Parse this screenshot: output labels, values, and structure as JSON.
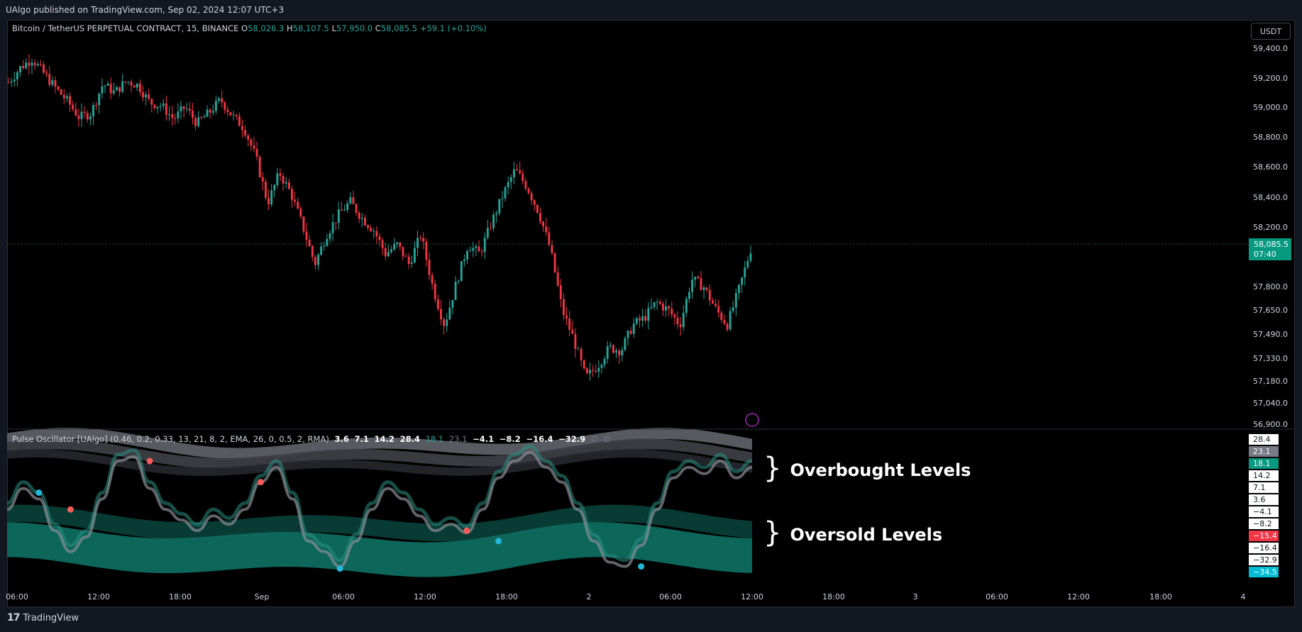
{
  "header": {
    "published_text": "UAlgo published on TradingView.com, Sep 02, 2024 12:07 UTC+3"
  },
  "main_legend": {
    "symbol": "Bitcoin / TetherUS PERPETUAL CONTRACT, 15, BINANCE",
    "o_label": "O",
    "o_value": "58,026.3",
    "h_label": "H",
    "h_value": "58,107.5",
    "l_label": "L",
    "l_value": "57,950.0",
    "c_label": "C",
    "c_value": "58,085.5",
    "change": "+59.1 (+0.10%)"
  },
  "currency_button": "USDT",
  "last_price": {
    "price": "58,085.5",
    "countdown": "07:40"
  },
  "osc_legend": {
    "name": "Pulse Oscillator [UAlgo] (0.46, 0.2, 0.33, 13, 21, 8, 2, EMA, 26, 0, 0.5, 2, RMA)",
    "v1": "3.6",
    "v2": "7.1",
    "v3": "14.2",
    "v4": "28.4",
    "v5": "18.1",
    "v6": "23.1",
    "v7": "−4.1",
    "v8": "−8.2",
    "v9": "−16.4",
    "v10": "−32.9",
    "v11": "∅",
    "v12": "∅"
  },
  "annotations": {
    "overbought": "Overbought Levels",
    "oversold": "Oversold Levels",
    "brace": "}"
  },
  "footer": {
    "logo_mark": "17",
    "logo_text": "TradingView"
  },
  "colors": {
    "up": "#26a69a",
    "down": "#f23645",
    "teal_band": "#0e5c52",
    "grey_band": "#5d5f66",
    "cyan_dot": "#22b7d6",
    "red_dot": "#f45b5b"
  },
  "chart_data": [
    {
      "type": "candlestick",
      "title": "Bitcoin / TetherUS PERPETUAL CONTRACT, 15, BINANCE",
      "y_axis_ticks": [
        "59,400.0",
        "59,200.0",
        "59,000.0",
        "58,800.0",
        "58,600.0",
        "58,400.0",
        "58,200.0",
        "57,800.0",
        "57,650.0",
        "57,490.0",
        "57,330.0",
        "57,180.0",
        "57,040.0",
        "56,900.0"
      ],
      "x_axis_ticks": [
        "06:00",
        "12:00",
        "18:00",
        "Sep",
        "06:00",
        "12:00",
        "18:00",
        "2",
        "06:00",
        "12:00",
        "18:00",
        "3",
        "06:00",
        "12:00",
        "18:00",
        "4"
      ],
      "last_price": 58085.5,
      "close_path": [
        59170,
        59270,
        59330,
        59230,
        59130,
        59040,
        58930,
        58960,
        59160,
        59100,
        59180,
        59150,
        59030,
        59010,
        58920,
        59000,
        58890,
        58960,
        59050,
        58940,
        58860,
        58660,
        58360,
        58560,
        58420,
        58200,
        57950,
        58150,
        58280,
        58370,
        58260,
        58180,
        58020,
        58080,
        57950,
        58150,
        57800,
        57550,
        57820,
        58080,
        58020,
        58230,
        58420,
        58580,
        58470,
        58300,
        58050,
        57650,
        57450,
        57200,
        57280,
        57400,
        57380,
        57550,
        57600,
        57700,
        57650,
        57550,
        57850,
        57800,
        57660,
        57550,
        57780,
        58050
      ],
      "price_range": [
        56900,
        59400
      ]
    },
    {
      "type": "line",
      "title": "Pulse Oscillator [UAlgo]",
      "y_axis_ticks": [
        "28.4",
        "23.1",
        "18.1",
        "14.2",
        "7.1",
        "3.6",
        "−4.1",
        "−8.2",
        "−15.4",
        "−16.4",
        "−32.9",
        "−34.5"
      ],
      "overbought_levels": [
        14.2,
        18.1,
        23.1,
        28.4
      ],
      "oversold_levels": [
        -8.2,
        -16.4,
        -32.9
      ],
      "oscillator": [
        -5,
        5,
        0,
        -15,
        -25,
        -18,
        0,
        18,
        20,
        5,
        -5,
        -10,
        -15,
        -8,
        -12,
        -5,
        8,
        15,
        0,
        -20,
        -25,
        -32,
        -20,
        -5,
        5,
        0,
        -8,
        -15,
        -12,
        -16,
        -5,
        10,
        18,
        22,
        15,
        8,
        -5,
        -20,
        -30,
        -32,
        -22,
        -5,
        10,
        15,
        12,
        18,
        10,
        15
      ],
      "signals": [
        {
          "kind": "bull",
          "value": 3
        },
        {
          "kind": "bear",
          "value": -5
        },
        {
          "kind": "bear",
          "value": 18
        },
        {
          "kind": "bear",
          "value": 8
        },
        {
          "kind": "bull",
          "value": -33
        },
        {
          "kind": "bear",
          "value": -15
        },
        {
          "kind": "bull",
          "value": -20
        },
        {
          "kind": "bull",
          "value": -32
        }
      ]
    }
  ]
}
